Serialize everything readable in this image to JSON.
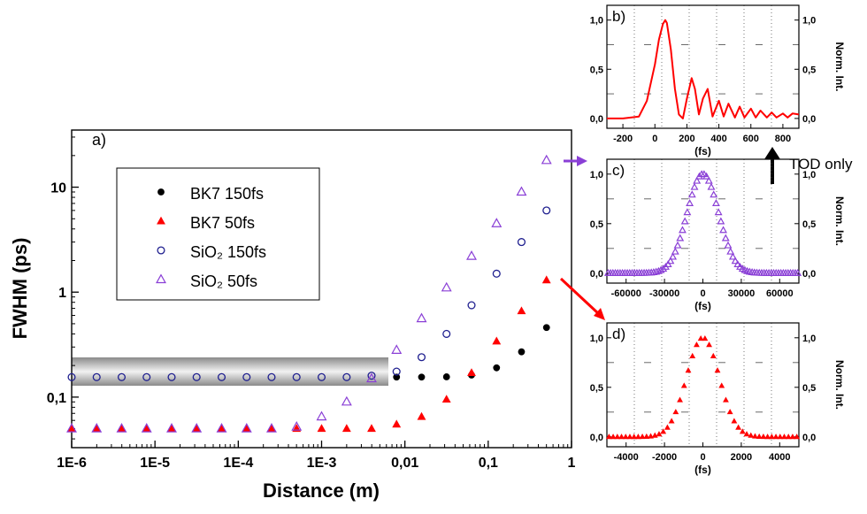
{
  "chart_data": [
    {
      "panel": "a)",
      "type": "scatter",
      "xlabel": "Distance (m)",
      "ylabel": "FWHM (ps)",
      "x_scale": "log",
      "y_scale": "log",
      "xlim": [
        1e-06,
        1
      ],
      "ylim": [
        0.033,
        35
      ],
      "x_ticks": [
        {
          "v": 1e-06,
          "label": "1E-6"
        },
        {
          "v": 1e-05,
          "label": "1E-5"
        },
        {
          "v": 0.0001,
          "label": "1E-4"
        },
        {
          "v": 0.001,
          "label": "1E-3"
        },
        {
          "v": 0.01,
          "label": "0,01"
        },
        {
          "v": 0.1,
          "label": "0,1"
        },
        {
          "v": 1,
          "label": "1"
        }
      ],
      "y_ticks": [
        {
          "v": 0.1,
          "label": "0,1"
        },
        {
          "v": 1,
          "label": "1"
        },
        {
          "v": 10,
          "label": "10"
        }
      ],
      "legend_position": "upper-left",
      "x": [
        1e-06,
        1.995e-06,
        3.98e-06,
        7.94e-06,
        1.585e-05,
        3.16e-05,
        6.31e-05,
        0.000126,
        0.000251,
        0.000501,
        0.001,
        0.002,
        0.00398,
        0.00794,
        0.01585,
        0.0316,
        0.0631,
        0.126,
        0.251,
        0.501
      ],
      "series": [
        {
          "name": "BK7 150fs",
          "marker": "filled-circle",
          "color": "#000000",
          "x": [
            0.00794,
            0.01585,
            0.0316,
            0.0631,
            0.126,
            0.251,
            0.501
          ],
          "values": [
            0.155,
            0.155,
            0.156,
            0.162,
            0.19,
            0.27,
            0.46
          ]
        },
        {
          "name": "BK7 50fs",
          "marker": "filled-triangle",
          "color": "#ff0000",
          "values": [
            0.05,
            0.05,
            0.05,
            0.05,
            0.05,
            0.05,
            0.05,
            0.05,
            0.05,
            0.05,
            0.05,
            0.05,
            0.05,
            0.055,
            0.065,
            0.095,
            0.17,
            0.34,
            0.66,
            1.3
          ]
        },
        {
          "name": "SiO₂ 150fs",
          "marker": "open-circle",
          "color": "#1f1f8f",
          "values": [
            0.155,
            0.155,
            0.155,
            0.155,
            0.155,
            0.155,
            0.155,
            0.155,
            0.155,
            0.155,
            0.155,
            0.155,
            0.16,
            0.175,
            0.24,
            0.4,
            0.75,
            1.5,
            3.0,
            6.0
          ]
        },
        {
          "name": "SiO₂ 50fs",
          "marker": "open-triangle",
          "color": "#8a3fd6",
          "values": [
            0.05,
            0.05,
            0.05,
            0.05,
            0.05,
            0.05,
            0.05,
            0.05,
            0.05,
            0.052,
            0.065,
            0.09,
            0.15,
            0.28,
            0.56,
            1.1,
            2.2,
            4.5,
            9.0,
            18.0
          ]
        }
      ]
    },
    {
      "panel": "b)",
      "type": "line",
      "xlabel": "(fs)",
      "ylabel": "Norm. Int.",
      "xlim": [
        -300,
        900
      ],
      "ylim": [
        -0.1,
        1.15
      ],
      "x_ticks": [
        -200,
        0,
        200,
        400,
        600,
        800
      ],
      "y_ticks": [
        {
          "v": 0,
          "label": "0,0"
        },
        {
          "v": 0.5,
          "label": "0,5"
        },
        {
          "v": 1,
          "label": "1,0"
        }
      ],
      "color": "#ff0000",
      "x": [
        -300,
        -200,
        -100,
        -50,
        0,
        25,
        50,
        65,
        75,
        100,
        125,
        150,
        175,
        200,
        230,
        250,
        275,
        300,
        330,
        360,
        400,
        430,
        460,
        500,
        530,
        560,
        600,
        630,
        660,
        700,
        730,
        760,
        800,
        830,
        860,
        900
      ],
      "values": [
        0.0,
        0.0,
        0.02,
        0.18,
        0.55,
        0.8,
        0.96,
        1.0,
        0.97,
        0.7,
        0.3,
        0.04,
        0.0,
        0.2,
        0.41,
        0.3,
        0.04,
        0.2,
        0.3,
        0.02,
        0.18,
        0.02,
        0.15,
        0.01,
        0.12,
        0.01,
        0.1,
        0.01,
        0.08,
        0.01,
        0.06,
        0.01,
        0.05,
        0.01,
        0.05,
        0.04
      ],
      "annotation": "TOD only"
    },
    {
      "panel": "c)",
      "type": "scatter",
      "xlabel": "(fs)",
      "ylabel": "Norm. Int.",
      "xlim": [
        -75000,
        75000
      ],
      "ylim": [
        -0.1,
        1.15
      ],
      "x_ticks": [
        -60000,
        -30000,
        0,
        30000,
        60000
      ],
      "y_ticks": [
        {
          "v": 0,
          "label": "0,0"
        },
        {
          "v": 0.5,
          "label": "0,5"
        },
        {
          "v": 1,
          "label": "1,0"
        }
      ],
      "color": "#8a3fd6",
      "marker": "open-triangle",
      "fwhm": 29000
    },
    {
      "panel": "d)",
      "type": "scatter",
      "xlabel": "(fs)",
      "ylabel": "Norm. Int.",
      "xlim": [
        -5000,
        5000
      ],
      "ylim": [
        -0.1,
        1.15
      ],
      "x_ticks": [
        -4000,
        -2000,
        0,
        2000,
        4000
      ],
      "y_ticks": [
        {
          "v": 0,
          "label": "0,0"
        },
        {
          "v": 0.5,
          "label": "0,5"
        },
        {
          "v": 1,
          "label": "1,0"
        }
      ],
      "color": "#ff0000",
      "marker": "filled-triangle",
      "fwhm": 2000
    }
  ]
}
